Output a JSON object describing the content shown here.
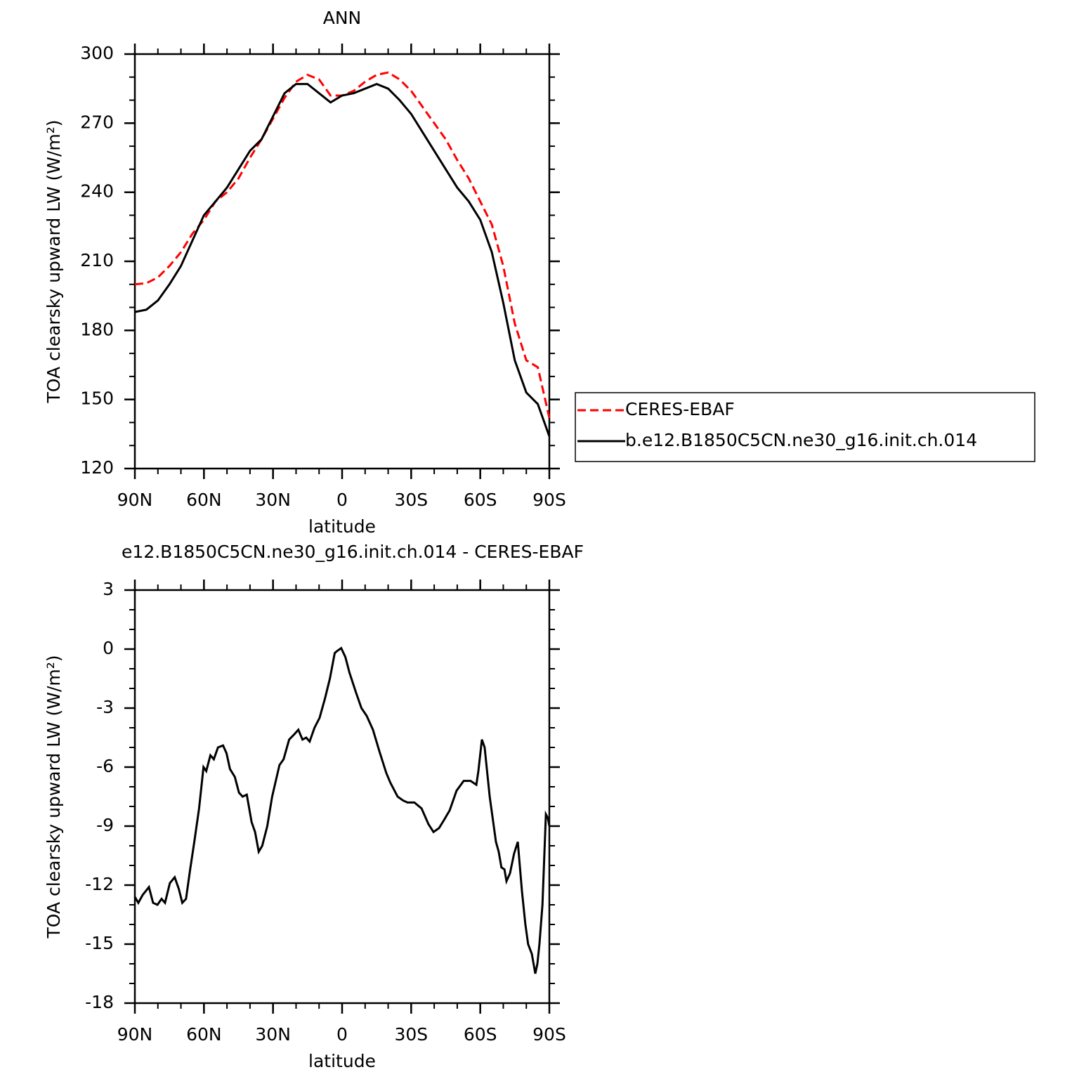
{
  "chart_data": [
    {
      "type": "line",
      "title": "ANN",
      "xlabel": "latitude",
      "ylabel": "TOA clearsky upward LW (W/m²)",
      "x": [
        90,
        85,
        80,
        75,
        70,
        65,
        60,
        55,
        50,
        45,
        40,
        35,
        30,
        25,
        20,
        15,
        10,
        5,
        0,
        -5,
        -10,
        -15,
        -20,
        -25,
        -30,
        -35,
        -40,
        -45,
        -50,
        -55,
        -60,
        -65,
        -70,
        -75,
        -80,
        -85,
        -90
      ],
      "series": [
        {
          "name": "CERES-EBAF",
          "color": "#ff0000",
          "dash": true,
          "values": [
            200,
            200.5,
            203,
            208,
            214,
            222,
            228,
            236,
            240,
            246,
            255,
            263,
            272,
            281,
            288,
            291,
            289,
            282,
            282,
            284,
            288,
            291,
            292,
            289,
            284,
            277,
            270,
            263,
            254,
            246,
            236,
            226,
            208,
            183,
            167,
            164,
            142
          ]
        },
        {
          "name": "b.e12.B1850C5CN.ne30_g16.init.ch.014",
          "color": "#000000",
          "dash": false,
          "values": [
            188,
            189,
            193,
            200,
            208,
            219,
            230,
            236,
            242,
            250,
            258,
            263,
            273,
            283,
            287,
            287,
            283,
            279,
            282,
            283,
            285,
            287,
            285,
            280,
            274,
            266,
            258,
            250,
            242,
            236,
            228,
            214,
            192,
            167,
            153,
            148,
            134
          ]
        }
      ],
      "xlim": [
        90,
        -90
      ],
      "xticks": [
        {
          "value": 90,
          "label": "90N"
        },
        {
          "value": 60,
          "label": "60N"
        },
        {
          "value": 30,
          "label": "30N"
        },
        0,
        {
          "value": -30,
          "label": "30S"
        },
        {
          "value": -60,
          "label": "60S"
        },
        {
          "value": -90,
          "label": "90S"
        }
      ],
      "ylim": [
        120,
        300
      ],
      "yticks": [
        120,
        150,
        180,
        210,
        240,
        270,
        300
      ]
    },
    {
      "type": "line",
      "title": "e12.B1850C5CN.ne30_g16.init.ch.014 - CERES-EBAF",
      "xlabel": "latitude",
      "ylabel": "TOA clearsky upward LW (W/m²)",
      "x": [
        90,
        88.5,
        86.6,
        83.9,
        82.1,
        80.2,
        78.4,
        76.9,
        74.8,
        72.7,
        70.9,
        69.4,
        67.8,
        66,
        64.2,
        62.1,
        60.2,
        59,
        57.2,
        55.7,
        53.9,
        51.7,
        50.2,
        48.7,
        46.6,
        44.8,
        43.2,
        41.4,
        39.3,
        37.8,
        36.2,
        34.7,
        32.5,
        30.4,
        27.2,
        25.4,
        23,
        20.5,
        19,
        17.2,
        15.6,
        14.1,
        12,
        9.8,
        7.4,
        5.3,
        3.2,
        2.2,
        0.4,
        -1.4,
        -3.2,
        -6,
        -8.4,
        -10.7,
        -13.4,
        -16.2,
        -19.2,
        -21,
        -24.1,
        -26.5,
        -28.4,
        -31.4,
        -34.5,
        -37.5,
        -39.7,
        -42.1,
        -44.2,
        -46.7,
        -49.7,
        -52.8,
        -55.8,
        -58.3,
        -59.2,
        -60.7,
        -61.9,
        -64.1,
        -66.8,
        -68,
        -69.2,
        -70.5,
        -71.4,
        -72.9,
        -74.7,
        -76.3,
        -78.1,
        -79.6,
        -80.8,
        -82.4,
        -83.9,
        -84.8,
        -85.7,
        -87,
        -88.5,
        -89.4,
        -90
      ],
      "color": "#000000",
      "values": [
        -12.6,
        -12.9,
        -12.5,
        -12.1,
        -12.9,
        -13,
        -12.7,
        -12.9,
        -11.9,
        -11.6,
        -12.2,
        -12.9,
        -12.7,
        -11.2,
        -9.8,
        -8.1,
        -6,
        -6.2,
        -5.4,
        -5.6,
        -5,
        -4.9,
        -5.3,
        -6.1,
        -6.5,
        -7.3,
        -7.5,
        -7.4,
        -8.8,
        -9.3,
        -10.3,
        -10,
        -9,
        -7.5,
        -5.9,
        -5.6,
        -4.6,
        -4.3,
        -4.1,
        -4.6,
        -4.5,
        -4.7,
        -4,
        -3.5,
        -2.5,
        -1.5,
        -0.2,
        -0.1,
        0.05,
        -0.4,
        -1.2,
        -2.2,
        -3,
        -3.4,
        -4.1,
        -5.2,
        -6.3,
        -6.8,
        -7.5,
        -7.7,
        -7.8,
        -7.8,
        -8.1,
        -8.9,
        -9.3,
        -9.1,
        -8.7,
        -8.2,
        -7.2,
        -6.7,
        -6.7,
        -6.9,
        -6.2,
        -4.6,
        -5,
        -7.5,
        -9.8,
        -10.3,
        -11.1,
        -11.2,
        -11.8,
        -11.4,
        -10.4,
        -9.8,
        -12.3,
        -14,
        -15,
        -15.5,
        -16.5,
        -16,
        -15,
        -13,
        -8.4,
        -8.6,
        -9
      ],
      "xlim": [
        90,
        -90
      ],
      "xticks": [
        {
          "value": 90,
          "label": "90N"
        },
        {
          "value": 60,
          "label": "60N"
        },
        {
          "value": 30,
          "label": "30N"
        },
        0,
        {
          "value": -30,
          "label": "30S"
        },
        {
          "value": -60,
          "label": "60S"
        },
        {
          "value": -90,
          "label": "90S"
        }
      ],
      "ylim": [
        -18,
        3
      ],
      "yticks": [
        -18,
        -15,
        -12,
        -9,
        -6,
        -3,
        0,
        3
      ]
    }
  ]
}
